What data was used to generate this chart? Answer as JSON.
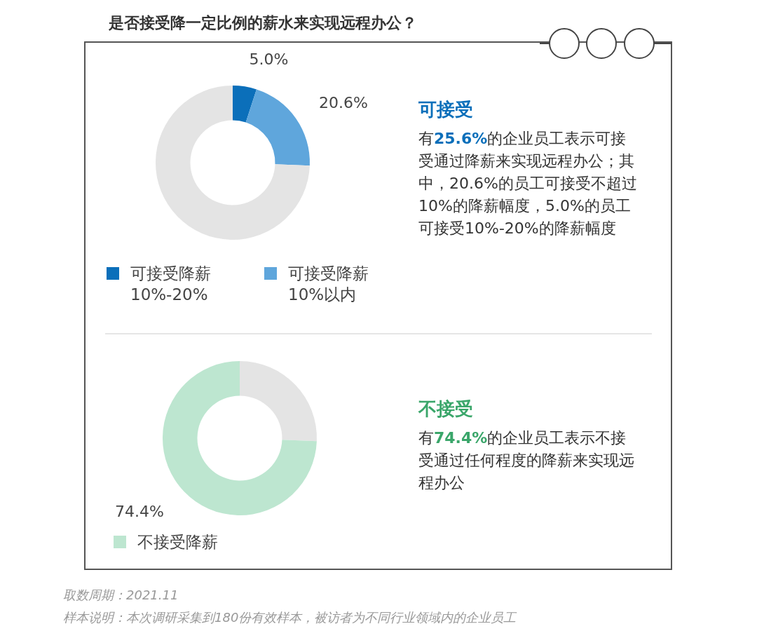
{
  "chart_data": [
    {
      "type": "donut",
      "title": "是否接受降一定比例的薪水来实现远程办公？",
      "categories": [
        "可接受降薪 10%-20%",
        "可接受降薪 10%以内",
        null
      ],
      "values": [
        5.0,
        20.6,
        74.4
      ],
      "colors": [
        "#0b6fba",
        "#5fa6dc",
        "#e4e4e4"
      ],
      "value_labels": [
        "5.0%",
        "20.6%",
        null
      ],
      "legend": "bottom left",
      "annotations": [
        "可接受",
        "有25.6%的企业员工表示可接受通过降薪来实现远程办公；其中，20.6%的员工可接受不超过10%的降薪幅度，5.0%的员工可接受10%-20%的降薪幅度"
      ]
    },
    {
      "type": "donut",
      "categories": [
        null,
        "不接受降薪"
      ],
      "values": [
        25.6,
        74.4
      ],
      "colors": [
        "#e4e4e4",
        "#bde6d0"
      ],
      "value_labels": [
        null,
        "74.4%"
      ],
      "legend": "bottom left",
      "annotations": [
        "不接受",
        "有74.4%的企业员工表示不接受通过任何程度的降薪来实现远程办公",
        "取数周期：2021.11",
        "样本说明：本次调研采集到180份有效样本，被访者为不同行业领域内的企业员工"
      ]
    }
  ]
}
